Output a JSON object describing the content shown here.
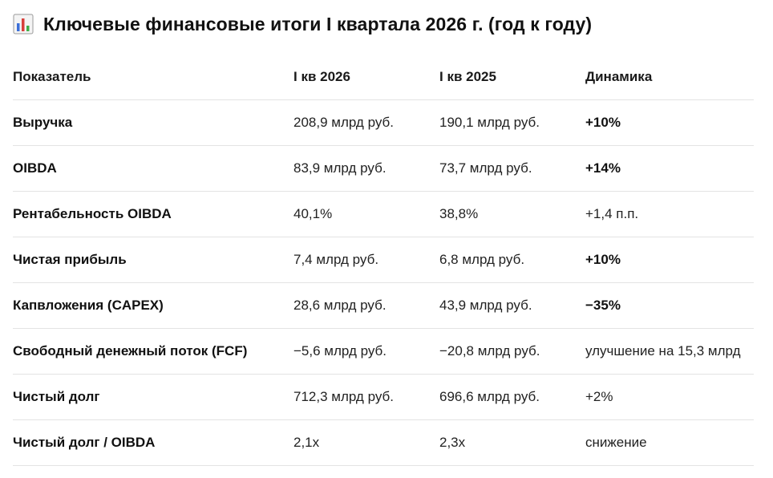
{
  "title": "Ключевые финансовые итоги I квартала 2026 г. (год к году)",
  "title_icon": "bar-chart-icon",
  "table": {
    "headers": [
      "Показатель",
      "I кв 2026",
      "I кв 2025",
      "Динамика"
    ],
    "rows": [
      {
        "metric": "Выручка",
        "q1_2026": "208,9 млрд руб.",
        "q1_2025": "190,1 млрд руб.",
        "change": "+10%",
        "change_bold": true
      },
      {
        "metric": "OIBDA",
        "q1_2026": "83,9 млрд руб.",
        "q1_2025": "73,7 млрд руб.",
        "change": "+14%",
        "change_bold": true
      },
      {
        "metric": "Рентабельность OIBDA",
        "q1_2026": "40,1%",
        "q1_2025": "38,8%",
        "change": "+1,4 п.п.",
        "change_bold": false
      },
      {
        "metric": "Чистая прибыль",
        "q1_2026": "7,4 млрд руб.",
        "q1_2025": "6,8 млрд руб.",
        "change": "+10%",
        "change_bold": true
      },
      {
        "metric": "Капвложения (CAPEX)",
        "q1_2026": "28,6 млрд руб.",
        "q1_2025": "43,9 млрд руб.",
        "change": "−35%",
        "change_bold": true
      },
      {
        "metric": "Свободный денежный поток (FCF)",
        "q1_2026": "−5,6 млрд руб.",
        "q1_2025": "−20,8 млрд руб.",
        "change": "улучшение на 15,3 млрд",
        "change_bold": false
      },
      {
        "metric": "Чистый долг",
        "q1_2026": "712,3 млрд руб.",
        "q1_2025": "696,6 млрд руб.",
        "change": "+2%",
        "change_bold": false
      },
      {
        "metric": "Чистый долг / OIBDA",
        "q1_2026": "2,1x",
        "q1_2025": "2,3x",
        "change": "снижение",
        "change_bold": false
      }
    ]
  }
}
